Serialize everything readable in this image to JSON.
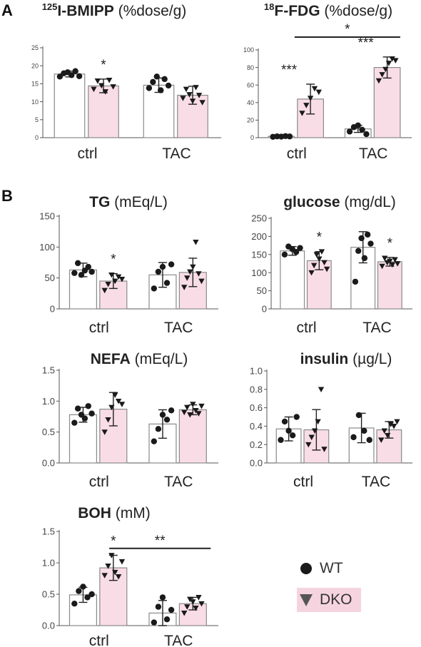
{
  "panels": [
    {
      "key": "A",
      "label": "A"
    },
    {
      "key": "B",
      "label": "B"
    }
  ],
  "colors": {
    "wt_fill": "#ffffff",
    "dko_fill": "#f9dde6",
    "bar_stroke": "#8a8a8a",
    "marker": "#1a1a1a",
    "axis": "#555555",
    "legend_dko_bg": "#f6d4df"
  },
  "legend": {
    "items": [
      {
        "label": "WT",
        "marker": "circle"
      },
      {
        "label": "DKO",
        "marker": "triangle-down"
      }
    ]
  },
  "chart_data": [
    {
      "id": "bmipp",
      "type": "bar",
      "title_bold": "I-BMIPP",
      "title_sup": "125",
      "title_normal": "(%dose/g)",
      "categories": [
        "ctrl",
        "TAC"
      ],
      "series": [
        {
          "name": "WT",
          "values": [
            17.7,
            14.6
          ],
          "sd": [
            0.8,
            2.0
          ]
        },
        {
          "name": "DKO",
          "values": [
            14.4,
            11.8
          ],
          "sd": [
            1.9,
            2.5
          ]
        }
      ],
      "points": [
        [
          [
            17.0,
            17.9,
            18.2,
            17.4,
            18.5,
            17.1
          ],
          [
            13.5,
            15.8,
            14.5,
            12.8,
            16.0,
            14.2
          ]
        ],
        [
          [
            13.8,
            15.5,
            17.0,
            13.2,
            16.3,
            14.5
          ],
          [
            11.0,
            13.5,
            12.0,
            10.2,
            14.0,
            11.8,
            9.8
          ]
        ]
      ],
      "ylim": [
        0,
        25
      ],
      "yticks": [
        "0",
        "5",
        "10",
        "15",
        "20",
        "25"
      ],
      "tick_step": 5,
      "stars": [
        {
          "cat": 0,
          "series": 1,
          "text": "*"
        }
      ],
      "bracket": null
    },
    {
      "id": "fdg",
      "type": "bar",
      "title_bold": "F-FDG",
      "title_sup": "18",
      "title_normal": "(%dose/g)",
      "categories": [
        "ctrl",
        "TAC"
      ],
      "series": [
        {
          "name": "WT",
          "values": [
            1.5,
            10.0
          ],
          "sd": [
            0.5,
            4.0
          ]
        },
        {
          "name": "DKO",
          "values": [
            44,
            80
          ],
          "sd": [
            17,
            12
          ]
        }
      ],
      "points": [
        [
          [
            1.0,
            1.5,
            1.2,
            1.8,
            1.4
          ],
          [
            28,
            37,
            45,
            56,
            52
          ]
        ],
        [
          [
            7,
            12,
            14,
            9,
            4
          ],
          [
            65,
            72,
            78,
            85,
            90,
            88
          ]
        ]
      ],
      "ylim": [
        0,
        100
      ],
      "yticks": [
        "0",
        "20",
        "40",
        "60",
        "80",
        "100"
      ],
      "tick_step": 20,
      "stars": [
        {
          "cat": 0,
          "series": 1,
          "text": "***"
        },
        {
          "cat": 1,
          "series": 1,
          "text": "***"
        }
      ],
      "bracket": {
        "text": "*"
      }
    },
    {
      "id": "tg",
      "type": "bar",
      "title_bold": "TG",
      "title_sup": "",
      "title_normal": "(mEq/L)",
      "categories": [
        "ctrl",
        "TAC"
      ],
      "series": [
        {
          "name": "WT",
          "values": [
            63,
            55
          ],
          "sd": [
            11,
            20
          ]
        },
        {
          "name": "DKO",
          "values": [
            45,
            59
          ],
          "sd": [
            12,
            23
          ]
        }
      ],
      "points": [
        [
          [
            58,
            74,
            55,
            62,
            68,
            60
          ],
          [
            30,
            40,
            55,
            45,
            52,
            48
          ]
        ],
        [
          [
            33,
            60,
            68,
            42,
            72
          ],
          [
            35,
            50,
            60,
            68,
            108,
            57,
            45
          ]
        ]
      ],
      "ylim": [
        0,
        150
      ],
      "yticks": [
        "0",
        "50",
        "100",
        "150"
      ],
      "tick_step": 50,
      "stars": [
        {
          "cat": 0,
          "series": 1,
          "text": "*"
        }
      ],
      "bracket": null
    },
    {
      "id": "glucose",
      "type": "bar",
      "title_bold": "glucose",
      "title_sup": "",
      "title_normal": "(mg/dL)",
      "categories": [
        "ctrl",
        "TAC"
      ],
      "series": [
        {
          "name": "WT",
          "values": [
            160,
            170
          ],
          "sd": [
            12,
            43
          ]
        },
        {
          "name": "DKO",
          "values": [
            133,
            130
          ],
          "sd": [
            25,
            12
          ]
        }
      ],
      "points": [
        [
          [
            150,
            172,
            165,
            157,
            168
          ],
          [
            100,
            120,
            150,
            138,
            158,
            128,
            110
          ]
        ],
        [
          [
            75,
            160,
            195,
            140,
            205,
            180
          ],
          [
            118,
            140,
            128,
            132,
            122,
            136,
            125
          ]
        ]
      ],
      "ylim": [
        0,
        250
      ],
      "yticks": [
        "0",
        "50",
        "100",
        "150",
        "200",
        "250"
      ],
      "tick_step": 50,
      "stars": [
        {
          "cat": 0,
          "series": 1,
          "text": "*"
        },
        {
          "cat": 1,
          "series": 1,
          "text": "*"
        }
      ],
      "bracket": null
    },
    {
      "id": "nefa",
      "type": "bar",
      "title_bold": "NEFA",
      "title_sup": "",
      "title_normal": "(mEq/L)",
      "categories": [
        "ctrl",
        "TAC"
      ],
      "series": [
        {
          "name": "WT",
          "values": [
            0.78,
            0.63
          ],
          "sd": [
            0.12,
            0.23
          ]
        },
        {
          "name": "DKO",
          "values": [
            0.87,
            0.86
          ],
          "sd": [
            0.27,
            0.08
          ]
        }
      ],
      "points": [
        [
          [
            0.65,
            0.88,
            0.78,
            0.72,
            0.92,
            0.8
          ],
          [
            0.5,
            0.7,
            0.9,
            1.1,
            1.0,
            0.95
          ]
        ],
        [
          [
            0.35,
            0.55,
            0.78,
            0.7,
            0.85
          ],
          [
            0.82,
            0.9,
            0.78,
            0.95,
            0.85,
            0.8,
            0.92
          ]
        ]
      ],
      "ylim": [
        0,
        1.5
      ],
      "yticks": [
        "0.0",
        "0.5",
        "1.0",
        "1.5"
      ],
      "tick_step": 0.5,
      "stars": [],
      "bracket": null
    },
    {
      "id": "insulin",
      "type": "bar",
      "title_bold": "insulin",
      "title_sup": "",
      "title_normal": "(µg/L)",
      "categories": [
        "ctrl",
        "TAC"
      ],
      "series": [
        {
          "name": "WT",
          "values": [
            0.37,
            0.38
          ],
          "sd": [
            0.13,
            0.16
          ]
        },
        {
          "name": "DKO",
          "values": [
            0.36,
            0.36
          ],
          "sd": [
            0.22,
            0.09
          ]
        }
      ],
      "points": [
        [
          [
            0.25,
            0.45,
            0.35,
            0.3,
            0.5
          ],
          [
            0.2,
            0.28,
            0.35,
            0.45,
            0.8,
            0.15
          ]
        ],
        [
          [
            0.28,
            0.52,
            0.35,
            0.25
          ],
          [
            0.25,
            0.35,
            0.3,
            0.42,
            0.4,
            0.45
          ]
        ]
      ],
      "ylim": [
        0,
        1.0
      ],
      "yticks": [
        "0.0",
        "0.2",
        "0.4",
        "0.6",
        "0.8",
        "1.0"
      ],
      "tick_step": 0.2,
      "stars": [],
      "bracket": null
    },
    {
      "id": "boh",
      "type": "bar",
      "title_bold": "BOH",
      "title_sup": "",
      "title_normal": "(mM)",
      "categories": [
        "ctrl",
        "TAC"
      ],
      "series": [
        {
          "name": "WT",
          "values": [
            0.49,
            0.2
          ],
          "sd": [
            0.12,
            0.2
          ]
        },
        {
          "name": "DKO",
          "values": [
            0.92,
            0.35
          ],
          "sd": [
            0.2,
            0.1
          ]
        }
      ],
      "points": [
        [
          [
            0.35,
            0.55,
            0.62,
            0.45,
            0.5
          ],
          [
            0.8,
            0.95,
            1.12,
            0.85,
            0.78,
            1.02
          ]
        ],
        [
          [
            0.05,
            0.3,
            0.45,
            0.1,
            0.25
          ],
          [
            0.2,
            0.3,
            0.42,
            0.38,
            0.28,
            0.45,
            0.35
          ]
        ]
      ],
      "ylim": [
        0,
        1.5
      ],
      "yticks": [
        "0.0",
        "0.5",
        "1.0",
        "1.5"
      ],
      "tick_step": 0.5,
      "stars": [
        {
          "cat": 0,
          "series": 1,
          "text": "*"
        }
      ],
      "bracket": {
        "text": "**"
      }
    }
  ]
}
